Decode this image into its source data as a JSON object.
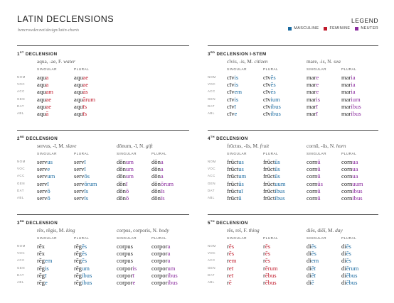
{
  "header": {
    "title": "LATIN DECLENSIONS",
    "url": "bencrowder.net/design/latin-charts"
  },
  "legend": {
    "title": "LEGEND",
    "items": [
      {
        "label": "MASCULINE",
        "color": "#1a6aa0"
      },
      {
        "label": "FEMININE",
        "color": "#c0192a"
      },
      {
        "label": "NEUTER",
        "color": "#8a2a9e"
      }
    ]
  },
  "case_labels": [
    "NOM",
    "VOC",
    "ACC",
    "GEN",
    "DAT",
    "ABL"
  ],
  "col_headers": {
    "singular": "SINGULAR",
    "plural": "PLURAL"
  },
  "sections": [
    {
      "key": "d1",
      "heading": "1ST DECLENSION",
      "nouns": [
        {
          "gloss": "aqua, -ae, F. water",
          "singular": [
            [
              "aqu",
              "a"
            ],
            [
              "aqu",
              "a"
            ],
            [
              "aqu",
              "am"
            ],
            [
              "aqu",
              "ae"
            ],
            [
              "aqu",
              "ae"
            ],
            [
              "aqu",
              "ā"
            ]
          ],
          "plural": [
            [
              "aqu",
              "ae"
            ],
            [
              "aqu",
              "ae"
            ],
            [
              "aqu",
              "ās"
            ],
            [
              "aqu",
              "ārum"
            ],
            [
              "aqu",
              "īs"
            ],
            [
              "aqu",
              "īs"
            ]
          ],
          "gender": "f"
        }
      ]
    },
    {
      "key": "d3i",
      "heading": "3RD DECLENSION I-STEM",
      "nouns": [
        {
          "gloss": "cīvis, -is, M. citizen",
          "singular": [
            [
              "cīv",
              "is"
            ],
            [
              "cīv",
              "is"
            ],
            [
              "cīv",
              "em"
            ],
            [
              "cīv",
              "is"
            ],
            [
              "cīv",
              "ī"
            ],
            [
              "cīv",
              "e"
            ]
          ],
          "plural": [
            [
              "cīv",
              "ēs"
            ],
            [
              "cīv",
              "ēs"
            ],
            [
              "cīv",
              "ēs"
            ],
            [
              "cīv",
              "ium"
            ],
            [
              "cīv",
              "ibus"
            ],
            [
              "cīv",
              "ibus"
            ]
          ],
          "gender": "m"
        },
        {
          "gloss": "mare, -is, N. sea",
          "singular": [
            [
              "mar",
              "e"
            ],
            [
              "mar",
              "e"
            ],
            [
              "mar",
              "e"
            ],
            [
              "mar",
              "is"
            ],
            [
              "mar",
              "ī"
            ],
            [
              "mar",
              "ī"
            ]
          ],
          "plural": [
            [
              "mar",
              "ia"
            ],
            [
              "mar",
              "ia"
            ],
            [
              "mar",
              "ia"
            ],
            [
              "mar",
              "ium"
            ],
            [
              "mar",
              "ibus"
            ],
            [
              "mar",
              "ibus"
            ]
          ],
          "gender": "n"
        }
      ]
    },
    {
      "key": "d2",
      "heading": "2ND DECLENSION",
      "nouns": [
        {
          "gloss": "servus, -ī, M. slave",
          "singular": [
            [
              "serv",
              "us"
            ],
            [
              "serv",
              "e"
            ],
            [
              "serv",
              "um"
            ],
            [
              "serv",
              "ī"
            ],
            [
              "serv",
              "ō"
            ],
            [
              "serv",
              "ō"
            ]
          ],
          "plural": [
            [
              "serv",
              "ī"
            ],
            [
              "serv",
              "ī"
            ],
            [
              "serv",
              "ōs"
            ],
            [
              "serv",
              "ōrum"
            ],
            [
              "serv",
              "īs"
            ],
            [
              "serv",
              "īs"
            ]
          ],
          "gender": "m"
        },
        {
          "gloss": "dōnum, -ī, N. gift",
          "singular": [
            [
              "dōn",
              "um"
            ],
            [
              "dōn",
              "um"
            ],
            [
              "dōn",
              "um"
            ],
            [
              "dōn",
              "ī"
            ],
            [
              "dōn",
              "ō"
            ],
            [
              "dōn",
              "ō"
            ]
          ],
          "plural": [
            [
              "dōn",
              "a"
            ],
            [
              "dōn",
              "a"
            ],
            [
              "dōn",
              "a"
            ],
            [
              "dōn",
              "ōrum"
            ],
            [
              "dōn",
              "īs"
            ],
            [
              "dōn",
              "īs"
            ]
          ],
          "gender": "n"
        }
      ]
    },
    {
      "key": "d4",
      "heading": "4TH DECLENSION",
      "nouns": [
        {
          "gloss": "frūctus, -ūs, M. fruit",
          "singular": [
            [
              "frūct",
              "us"
            ],
            [
              "frūct",
              "us"
            ],
            [
              "frūct",
              "um"
            ],
            [
              "frūct",
              "ūs"
            ],
            [
              "frūct",
              "uī"
            ],
            [
              "frūct",
              "ū"
            ]
          ],
          "plural": [
            [
              "frūct",
              "ūs"
            ],
            [
              "frūct",
              "ūs"
            ],
            [
              "frūct",
              "ūs"
            ],
            [
              "frūct",
              "uum"
            ],
            [
              "frūct",
              "ibus"
            ],
            [
              "frūct",
              "ibus"
            ]
          ],
          "gender": "m"
        },
        {
          "gloss": "cornū, -ūs, N. horn",
          "singular": [
            [
              "corn",
              "ū"
            ],
            [
              "corn",
              "ū"
            ],
            [
              "corn",
              "ū"
            ],
            [
              "corn",
              "ūs"
            ],
            [
              "corn",
              "ū"
            ],
            [
              "corn",
              "ū"
            ]
          ],
          "plural": [
            [
              "corn",
              "ua"
            ],
            [
              "corn",
              "ua"
            ],
            [
              "corn",
              "ua"
            ],
            [
              "corn",
              "uum"
            ],
            [
              "corn",
              "ibus"
            ],
            [
              "corn",
              "ibus"
            ]
          ],
          "gender": "n"
        }
      ]
    },
    {
      "key": "d3",
      "heading": "3RD DECLENSION",
      "nouns": [
        {
          "gloss": "rēx, rēgis, M. king",
          "singular": [
            [
              "rēx",
              ""
            ],
            [
              "rēx",
              ""
            ],
            [
              "rēg",
              "em"
            ],
            [
              "rēg",
              "is"
            ],
            [
              "rēg",
              "ī"
            ],
            [
              "rēg",
              "e"
            ]
          ],
          "plural": [
            [
              "rēg",
              "ēs"
            ],
            [
              "rēg",
              "ēs"
            ],
            [
              "rēg",
              "ēs"
            ],
            [
              "rēg",
              "um"
            ],
            [
              "rēg",
              "ibus"
            ],
            [
              "rēg",
              "ibus"
            ]
          ],
          "gender": "m"
        },
        {
          "gloss": "corpus, corporis, N. body",
          "singular": [
            [
              "corpus",
              ""
            ],
            [
              "corpus",
              ""
            ],
            [
              "corpus",
              ""
            ],
            [
              "corpor",
              "is"
            ],
            [
              "corpor",
              "ī"
            ],
            [
              "corpor",
              "e"
            ]
          ],
          "plural": [
            [
              "corpor",
              "a"
            ],
            [
              "corpor",
              "a"
            ],
            [
              "corpor",
              "a"
            ],
            [
              "corpor",
              "um"
            ],
            [
              "corpor",
              "ibus"
            ],
            [
              "corpor",
              "ibus"
            ]
          ],
          "gender": "n"
        }
      ]
    },
    {
      "key": "d5",
      "heading": "5TH DECLENSION",
      "nouns": [
        {
          "gloss": "rēs, reī, F. thing",
          "singular": [
            [
              "r",
              "ēs"
            ],
            [
              "r",
              "ēs"
            ],
            [
              "r",
              "em"
            ],
            [
              "r",
              "eī"
            ],
            [
              "r",
              "eī"
            ],
            [
              "r",
              "ē"
            ]
          ],
          "plural": [
            [
              "r",
              "ēs"
            ],
            [
              "r",
              "ēs"
            ],
            [
              "r",
              "ēs"
            ],
            [
              "r",
              "ērum"
            ],
            [
              "r",
              "ēbus"
            ],
            [
              "r",
              "ēbus"
            ]
          ],
          "gender": "f"
        },
        {
          "gloss": "diēs, diēī, M. day",
          "singular": [
            [
              "di",
              "ēs"
            ],
            [
              "di",
              "ēs"
            ],
            [
              "di",
              "em"
            ],
            [
              "di",
              "ēī"
            ],
            [
              "di",
              "ēī"
            ],
            [
              "di",
              "ē"
            ]
          ],
          "plural": [
            [
              "di",
              "ēs"
            ],
            [
              "di",
              "ēs"
            ],
            [
              "di",
              "ēs"
            ],
            [
              "di",
              "ērum"
            ],
            [
              "di",
              "ēbus"
            ],
            [
              "di",
              "ēbus"
            ]
          ],
          "gender": "m"
        }
      ]
    }
  ]
}
